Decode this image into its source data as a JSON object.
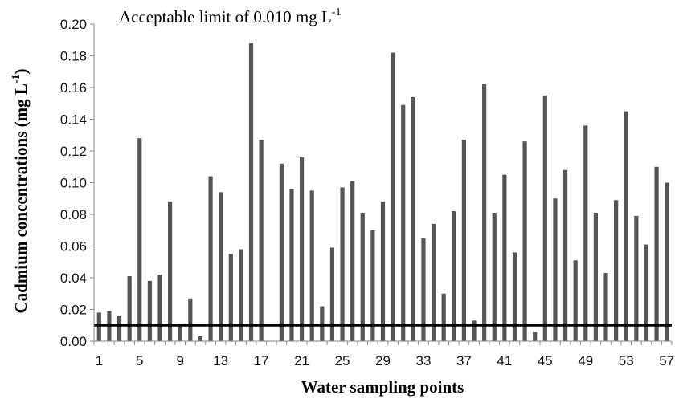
{
  "chart_data": {
    "type": "bar",
    "xlabel": "Water sampling points",
    "ylabel": {
      "prefix": "Cadmium concentrations (mg L",
      "sup": "-1",
      "suffix": ")"
    },
    "annotation": {
      "prefix": "Acceptable limit of 0.010 mg L",
      "sup": "-1"
    },
    "reference_line": {
      "value": 0.01,
      "color": "#000000"
    },
    "ylim": [
      0,
      0.2
    ],
    "yticks": [
      "0.00",
      "0.02",
      "0.04",
      "0.06",
      "0.08",
      "0.10",
      "0.12",
      "0.14",
      "0.16",
      "0.18",
      "0.20"
    ],
    "xticks": [
      "1",
      "5",
      "9",
      "13",
      "17",
      "21",
      "25",
      "29",
      "33",
      "37",
      "41",
      "45",
      "49",
      "53",
      "57"
    ],
    "bar_color": "#555555",
    "grid": false,
    "categories": [
      1,
      2,
      3,
      4,
      5,
      6,
      7,
      8,
      9,
      10,
      11,
      12,
      13,
      14,
      15,
      16,
      17,
      18,
      19,
      20,
      21,
      22,
      23,
      24,
      25,
      26,
      27,
      28,
      29,
      30,
      31,
      32,
      33,
      34,
      35,
      36,
      37,
      38,
      39,
      40,
      41,
      42,
      43,
      44,
      45,
      46,
      47,
      48,
      49,
      50,
      51,
      52,
      53,
      54,
      55,
      56,
      57
    ],
    "values": [
      0.018,
      0.019,
      0.016,
      0.041,
      0.128,
      0.038,
      0.042,
      0.088,
      0.011,
      0.027,
      0.003,
      0.104,
      0.094,
      0.055,
      0.058,
      0.188,
      0.127,
      0.0,
      0.112,
      0.096,
      0.116,
      0.095,
      0.022,
      0.059,
      0.097,
      0.101,
      0.081,
      0.07,
      0.088,
      0.182,
      0.149,
      0.154,
      0.065,
      0.074,
      0.03,
      0.082,
      0.127,
      0.013,
      0.162,
      0.081,
      0.105,
      0.056,
      0.126,
      0.006,
      0.155,
      0.09,
      0.108,
      0.051,
      0.136,
      0.081,
      0.043,
      0.089,
      0.145,
      0.079,
      0.061,
      0.11,
      0.1
    ]
  }
}
